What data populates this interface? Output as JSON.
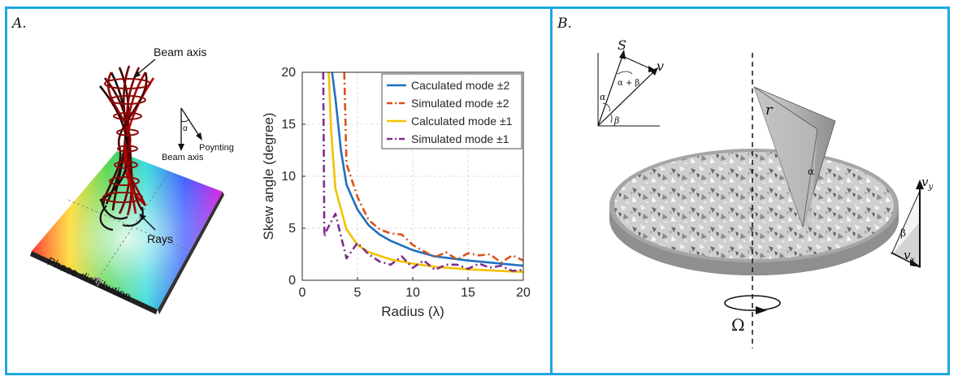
{
  "panel_a": {
    "label": "A.",
    "beam": {
      "beam_axis_top": "Beam axis",
      "alpha": "α",
      "poynting": "Poynting",
      "beam_axis_small": "Beam axis",
      "rays": "Rays",
      "phase": "Phase distribution"
    },
    "chart_data": {
      "type": "line",
      "xlabel": "Radius (λ)",
      "ylabel": "Skew angle (degree)",
      "xlim": [
        0,
        20
      ],
      "ylim": [
        0,
        20
      ],
      "x_ticks": [
        "0",
        "5",
        "10",
        "15",
        "20"
      ],
      "y_ticks": [
        "0",
        "5",
        "10",
        "15",
        "20"
      ],
      "grid": true,
      "legend_position": "top-right",
      "series": [
        {
          "name": "Caculated mode ±2",
          "color": "#1f6fc0",
          "style": "solid",
          "x": [
            2.7,
            3,
            3.5,
            4,
            5,
            6,
            7,
            8,
            10,
            12,
            15,
            20
          ],
          "y": [
            20,
            17.5,
            12.5,
            9.2,
            6.8,
            5.3,
            4.4,
            3.8,
            2.9,
            2.3,
            1.9,
            1.4
          ]
        },
        {
          "name": "Simulated mode ±2",
          "color": "#d95319",
          "style": "dashdot",
          "x": [
            3.8,
            3.9,
            4,
            5,
            6,
            7,
            8,
            9,
            10,
            11,
            12,
            13,
            14,
            15,
            16,
            17,
            18,
            19,
            20
          ],
          "y": [
            20,
            15.8,
            11.2,
            8,
            5.8,
            4.9,
            4.5,
            4.4,
            3.4,
            2.8,
            2.2,
            2.7,
            2,
            2.6,
            2.4,
            2.5,
            1.7,
            2.4,
            1.9
          ]
        },
        {
          "name": "Calculated mode ±1",
          "color": "#f2c200",
          "style": "solid",
          "x": [
            2.4,
            2.6,
            3,
            4,
            5,
            6,
            8,
            10,
            12,
            15,
            20
          ],
          "y": [
            20,
            14.5,
            8.8,
            4.9,
            3.4,
            2.7,
            2,
            1.6,
            1.3,
            1.05,
            0.8
          ]
        },
        {
          "name": "Simulated mode ±1",
          "color": "#7e2f8e",
          "style": "dashdot",
          "x": [
            1.9,
            2,
            2.2,
            3,
            4,
            5,
            6,
            7,
            8,
            9,
            10,
            11,
            12,
            13,
            14,
            15,
            16,
            17,
            18,
            19,
            20
          ],
          "y": [
            20,
            4.2,
            4.8,
            6.4,
            2.1,
            3.6,
            2.5,
            1.8,
            1.5,
            2.3,
            1.2,
            1.9,
            1,
            1.5,
            1.5,
            1.1,
            1.6,
            1.2,
            1.4,
            0.9,
            1
          ]
        }
      ]
    }
  },
  "panel_b": {
    "label": "B.",
    "s": "S",
    "v": "v",
    "alpha_beta": "α + β",
    "alpha": "α",
    "beta": "β",
    "r": "r",
    "alpha_wedge": "α",
    "vy": "v",
    "vy_sub": "y",
    "vx": "v",
    "vx_sub": "x",
    "beta_triangle": "β",
    "omega": "Ω"
  },
  "colors": {
    "border": "#1ea7e1"
  }
}
